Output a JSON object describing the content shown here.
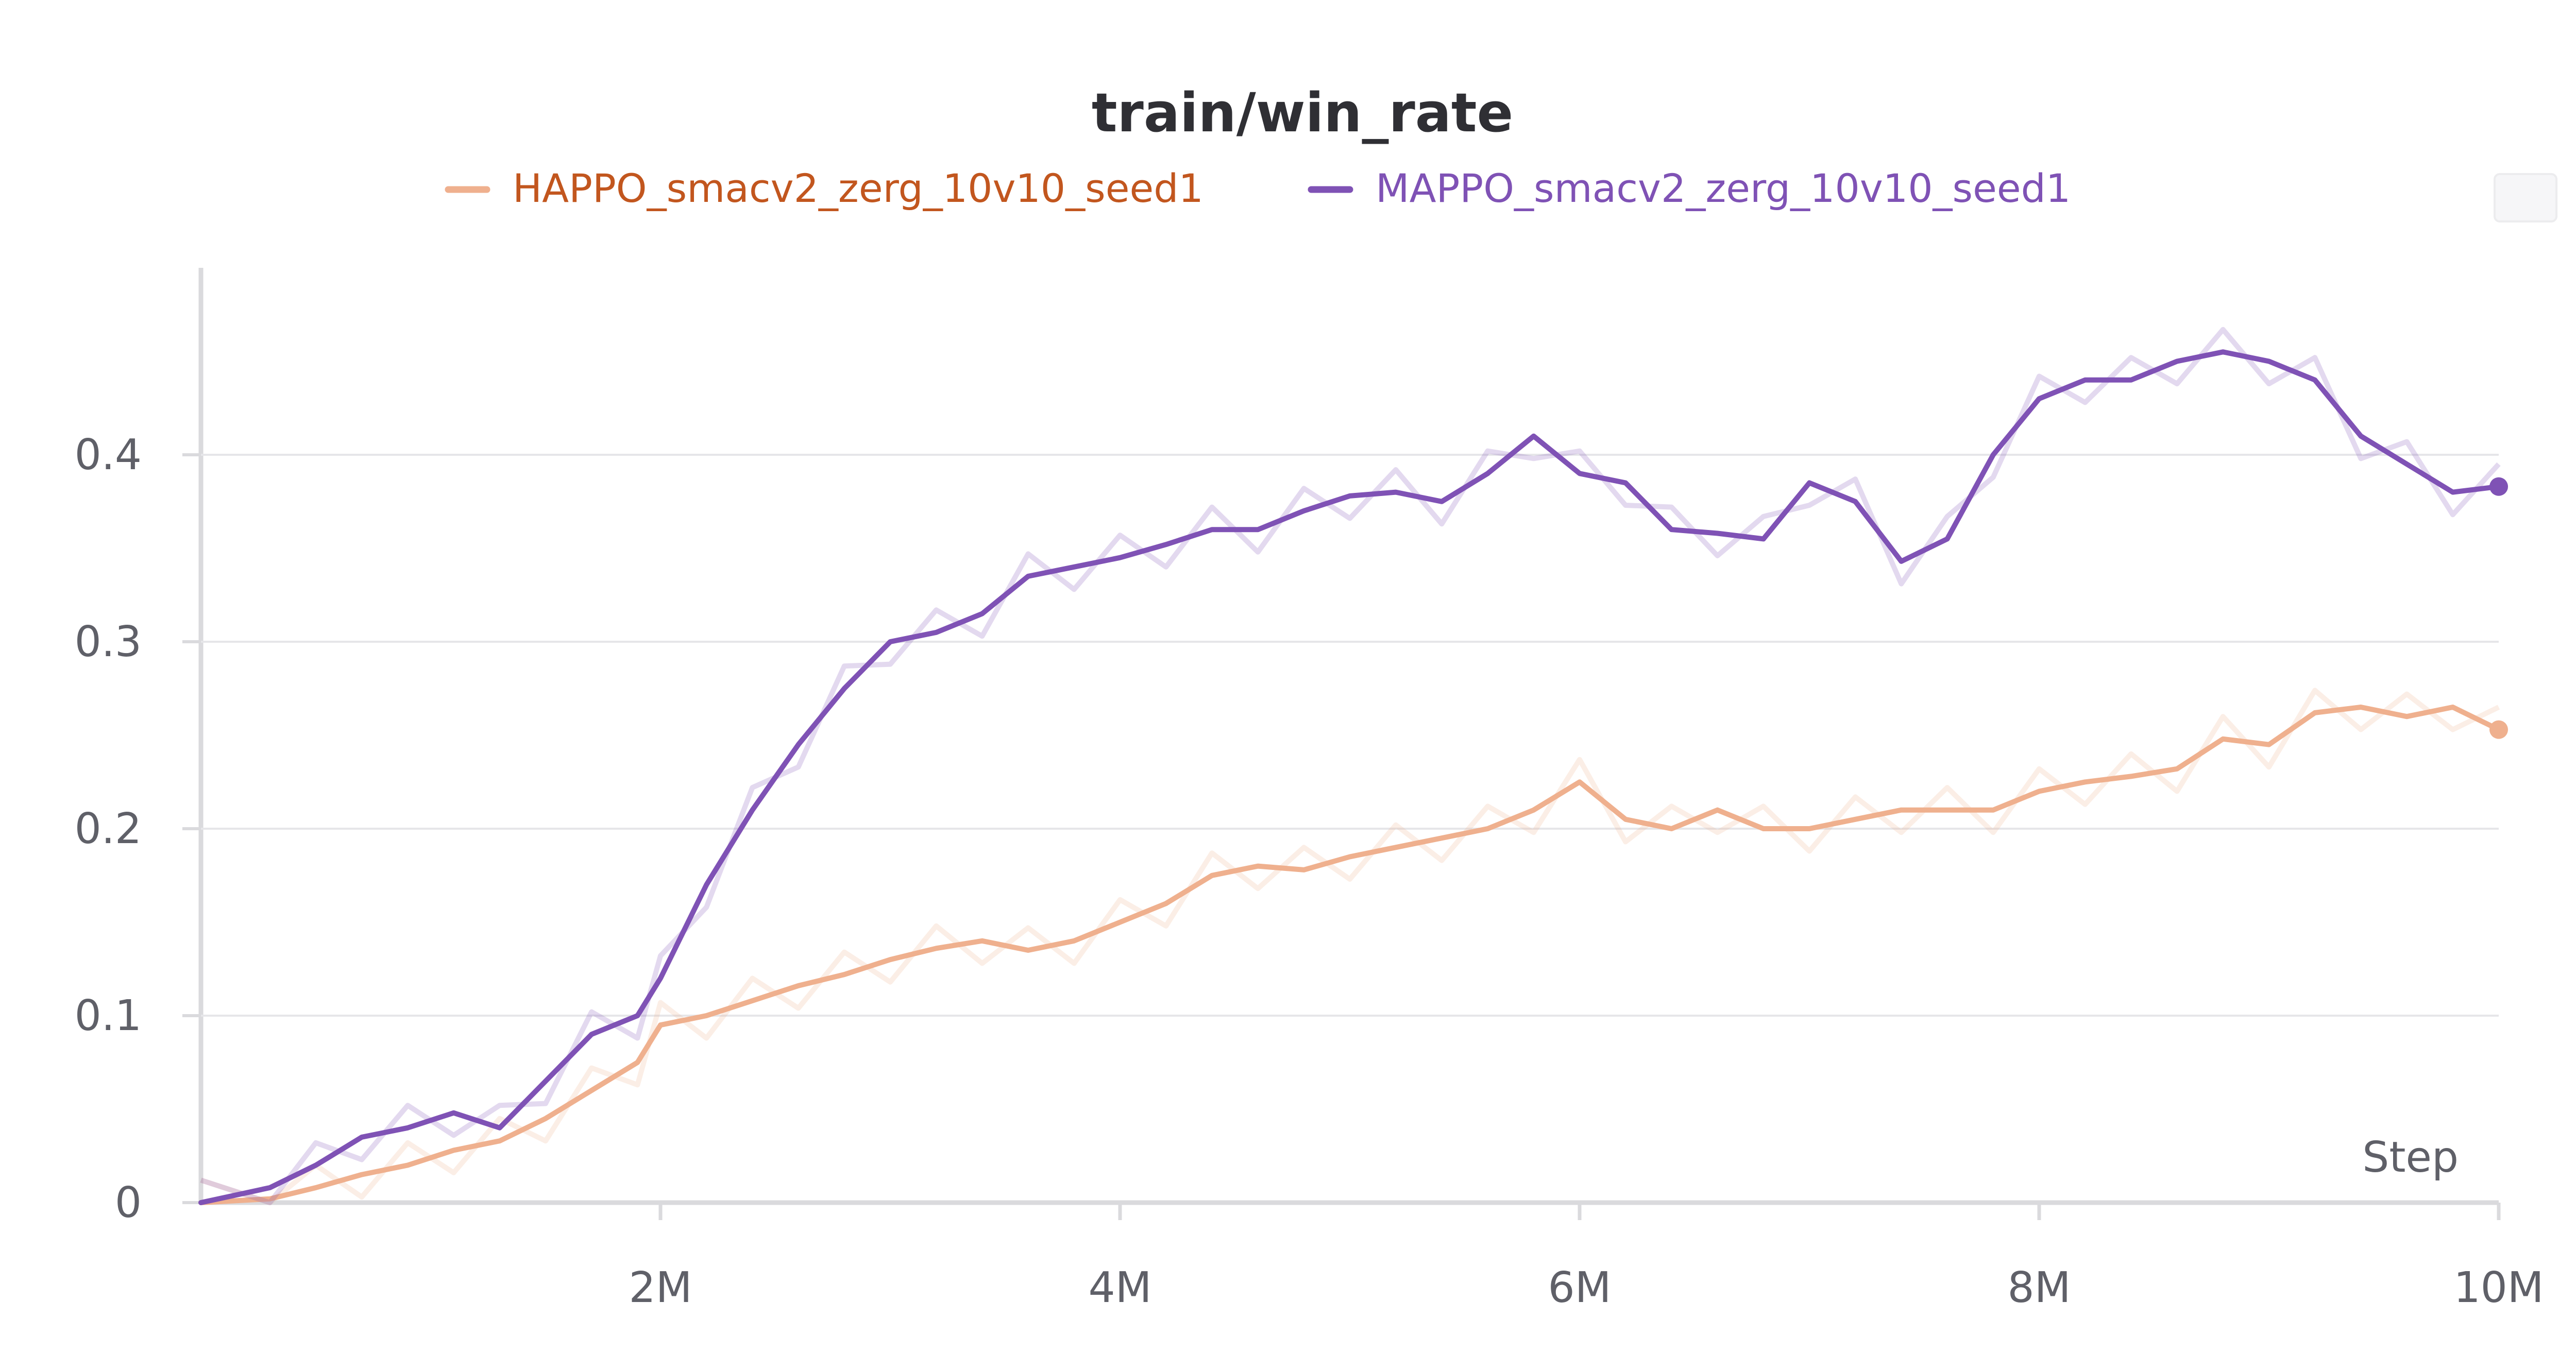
{
  "chart_data": {
    "type": "line",
    "title": "train/win_rate",
    "xlabel": "Step",
    "ylabel": "",
    "xlim": [
      0,
      10000000
    ],
    "ylim": [
      0,
      0.5
    ],
    "x_ticks": [
      {
        "value": 2000000,
        "label": "2M"
      },
      {
        "value": 4000000,
        "label": "4M"
      },
      {
        "value": 6000000,
        "label": "6M"
      },
      {
        "value": 8000000,
        "label": "8M"
      },
      {
        "value": 10000000,
        "label": "10M"
      }
    ],
    "y_ticks": [
      {
        "value": 0,
        "label": "0"
      },
      {
        "value": 0.1,
        "label": "0.1"
      },
      {
        "value": 0.2,
        "label": "0.2"
      },
      {
        "value": 0.3,
        "label": "0.3"
      },
      {
        "value": 0.4,
        "label": "0.4"
      }
    ],
    "grid": true,
    "legend_position": "top-center",
    "colors": {
      "HAPPO": "#efb08e",
      "HAPPO_legend_text": "#c2561e",
      "MAPPO": "#7f52b5",
      "MAPPO_legend_text": "#7f52b5",
      "grid": "#e6e6e9",
      "axis": "#dadadd"
    },
    "series": [
      {
        "name": "HAPPO_smacv2_zerg_10v10_seed1",
        "x": [
          0,
          300000,
          500000,
          700000,
          900000,
          1100000,
          1300000,
          1500000,
          1700000,
          1900000,
          2000000,
          2200000,
          2400000,
          2600000,
          2800000,
          3000000,
          3200000,
          3400000,
          3600000,
          3800000,
          4000000,
          4200000,
          4400000,
          4600000,
          4800000,
          5000000,
          5200000,
          5400000,
          5600000,
          5800000,
          6000000,
          6200000,
          6400000,
          6600000,
          6800000,
          7000000,
          7200000,
          7400000,
          7600000,
          7800000,
          8000000,
          8200000,
          8400000,
          8600000,
          8800000,
          9000000,
          9200000,
          9400000,
          9600000,
          9800000,
          10000000
        ],
        "values": [
          0.0,
          0.002,
          0.008,
          0.015,
          0.02,
          0.028,
          0.033,
          0.045,
          0.06,
          0.075,
          0.095,
          0.1,
          0.108,
          0.116,
          0.122,
          0.13,
          0.136,
          0.14,
          0.135,
          0.14,
          0.15,
          0.16,
          0.175,
          0.18,
          0.178,
          0.185,
          0.19,
          0.195,
          0.2,
          0.21,
          0.225,
          0.205,
          0.2,
          0.21,
          0.2,
          0.2,
          0.205,
          0.21,
          0.21,
          0.21,
          0.22,
          0.225,
          0.228,
          0.232,
          0.248,
          0.245,
          0.262,
          0.265,
          0.26,
          0.265,
          0.253
        ]
      },
      {
        "name": "MAPPO_smacv2_zerg_10v10_seed1",
        "x": [
          0,
          300000,
          500000,
          700000,
          900000,
          1100000,
          1300000,
          1500000,
          1700000,
          1900000,
          2000000,
          2200000,
          2400000,
          2600000,
          2800000,
          3000000,
          3200000,
          3400000,
          3600000,
          3800000,
          4000000,
          4200000,
          4400000,
          4600000,
          4800000,
          5000000,
          5200000,
          5400000,
          5600000,
          5800000,
          6000000,
          6200000,
          6400000,
          6600000,
          6800000,
          7000000,
          7200000,
          7400000,
          7600000,
          7800000,
          8000000,
          8200000,
          8400000,
          8600000,
          8800000,
          9000000,
          9200000,
          9400000,
          9600000,
          9800000,
          10000000
        ],
        "values": [
          0.0,
          0.008,
          0.02,
          0.035,
          0.04,
          0.048,
          0.04,
          0.065,
          0.09,
          0.1,
          0.12,
          0.17,
          0.21,
          0.245,
          0.275,
          0.3,
          0.305,
          0.315,
          0.335,
          0.34,
          0.345,
          0.352,
          0.36,
          0.36,
          0.37,
          0.378,
          0.38,
          0.375,
          0.39,
          0.41,
          0.39,
          0.385,
          0.36,
          0.358,
          0.355,
          0.385,
          0.375,
          0.343,
          0.355,
          0.4,
          0.43,
          0.44,
          0.44,
          0.45,
          0.455,
          0.45,
          0.44,
          0.41,
          0.395,
          0.38,
          0.383
        ]
      }
    ]
  }
}
